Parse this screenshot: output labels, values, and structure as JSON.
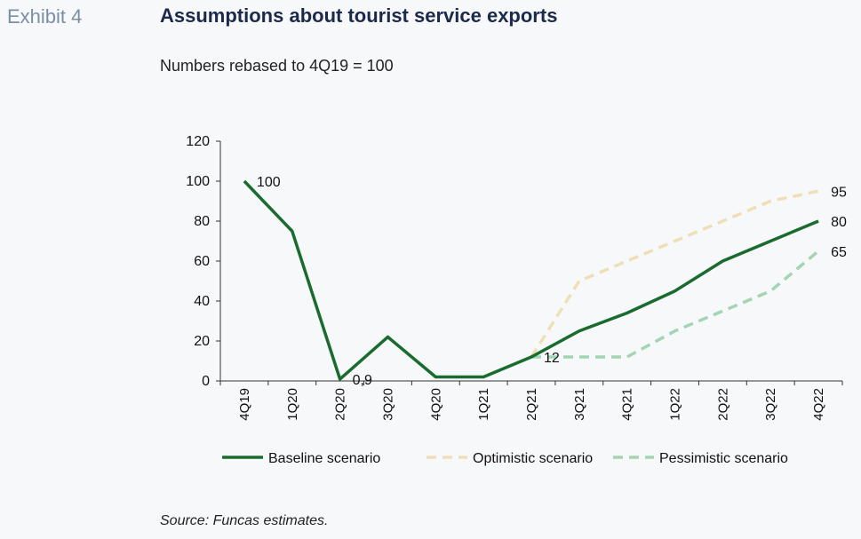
{
  "header": {
    "exhibit": "Exhibit 4"
  },
  "chart_data": {
    "type": "line",
    "title": "Assumptions about tourist service exports",
    "subtitle": "Numbers rebased to 4Q19 = 100",
    "source": "Source: Funcas estimates.",
    "categories": [
      "4Q19",
      "1Q20",
      "2Q20",
      "3Q20",
      "4Q20",
      "1Q21",
      "2Q21",
      "3Q21",
      "4Q21",
      "1Q22",
      "2Q22",
      "3Q22",
      "4Q22"
    ],
    "ylim": [
      0,
      120
    ],
    "yticks": [
      "0",
      "20",
      "40",
      "60",
      "80",
      "100",
      "120"
    ],
    "grid": false,
    "legend_position": "bottom",
    "series": [
      {
        "name": "Baseline scenario",
        "style": "solid",
        "color": "#1a6b2e",
        "values": [
          100,
          75,
          0.9,
          22,
          2,
          2,
          12,
          25,
          34,
          45,
          60,
          70,
          80
        ]
      },
      {
        "name": "Optimistic scenario",
        "style": "dashed",
        "color": "#efdfb6",
        "values": [
          null,
          null,
          null,
          null,
          null,
          null,
          12,
          50,
          60,
          70,
          80,
          90,
          95
        ]
      },
      {
        "name": "Pessimistic scenario",
        "style": "dashed",
        "color": "#a3d5b4",
        "values": [
          null,
          null,
          null,
          null,
          null,
          null,
          12,
          12,
          12,
          25,
          35,
          45,
          65
        ]
      }
    ],
    "data_labels": [
      {
        "series": 0,
        "index": 0,
        "text": "100"
      },
      {
        "series": 0,
        "index": 2,
        "text": "0,9"
      },
      {
        "series": 0,
        "index": 6,
        "text": "12"
      },
      {
        "series": 1,
        "index": 12,
        "text": "95"
      },
      {
        "series": 0,
        "index": 12,
        "text": "80"
      },
      {
        "series": 2,
        "index": 12,
        "text": "65"
      }
    ]
  }
}
